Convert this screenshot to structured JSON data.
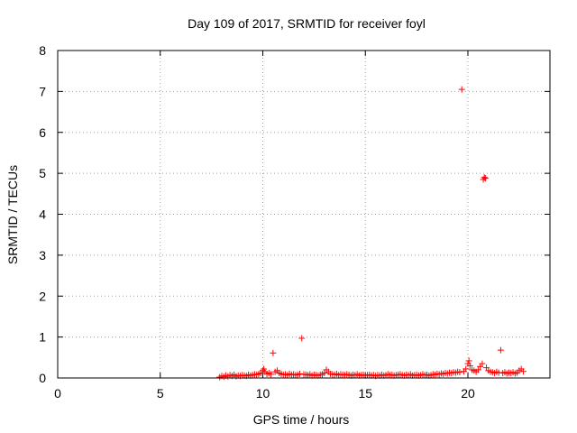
{
  "chart_data": {
    "type": "scatter",
    "title": "Day 109 of 2017, SRMTID for receiver foyl",
    "xlabel": "GPS time / hours",
    "ylabel": "SRMTID / TECUs",
    "xlim": [
      0,
      24
    ],
    "ylim": [
      0,
      8
    ],
    "xticks": [
      0,
      5,
      10,
      15,
      20
    ],
    "yticks": [
      0,
      1,
      2,
      3,
      4,
      5,
      6,
      7,
      8
    ],
    "grid": true,
    "marker": "+",
    "color": "#ff0000",
    "series": [
      {
        "name": "SRMTID",
        "points": [
          [
            7.9,
            0.02
          ],
          [
            8.0,
            0.05
          ],
          [
            8.1,
            0.03
          ],
          [
            8.2,
            0.06
          ],
          [
            8.3,
            0.04
          ],
          [
            8.4,
            0.07
          ],
          [
            8.5,
            0.05
          ],
          [
            8.6,
            0.08
          ],
          [
            8.7,
            0.04
          ],
          [
            8.8,
            0.06
          ],
          [
            8.9,
            0.05
          ],
          [
            9.0,
            0.07
          ],
          [
            9.1,
            0.06
          ],
          [
            9.2,
            0.05
          ],
          [
            9.3,
            0.08
          ],
          [
            9.4,
            0.06
          ],
          [
            9.5,
            0.07
          ],
          [
            9.6,
            0.09
          ],
          [
            9.7,
            0.08
          ],
          [
            9.8,
            0.1
          ],
          [
            9.9,
            0.12
          ],
          [
            10.0,
            0.18
          ],
          [
            10.05,
            0.22
          ],
          [
            10.1,
            0.15
          ],
          [
            10.2,
            0.1
          ],
          [
            10.3,
            0.12
          ],
          [
            10.4,
            0.09
          ],
          [
            10.5,
            0.61
          ],
          [
            10.6,
            0.15
          ],
          [
            10.7,
            0.18
          ],
          [
            10.8,
            0.12
          ],
          [
            10.9,
            0.1
          ],
          [
            11.0,
            0.08
          ],
          [
            11.1,
            0.09
          ],
          [
            11.2,
            0.07
          ],
          [
            11.3,
            0.1
          ],
          [
            11.4,
            0.08
          ],
          [
            11.5,
            0.09
          ],
          [
            11.6,
            0.07
          ],
          [
            11.7,
            0.08
          ],
          [
            11.8,
            0.1
          ],
          [
            11.9,
            0.97
          ],
          [
            12.0,
            0.09
          ],
          [
            12.1,
            0.08
          ],
          [
            12.2,
            0.07
          ],
          [
            12.3,
            0.09
          ],
          [
            12.4,
            0.06
          ],
          [
            12.5,
            0.08
          ],
          [
            12.6,
            0.07
          ],
          [
            12.7,
            0.06
          ],
          [
            12.8,
            0.08
          ],
          [
            12.9,
            0.09
          ],
          [
            13.0,
            0.12
          ],
          [
            13.1,
            0.2
          ],
          [
            13.2,
            0.15
          ],
          [
            13.3,
            0.1
          ],
          [
            13.4,
            0.09
          ],
          [
            13.5,
            0.08
          ],
          [
            13.6,
            0.1
          ],
          [
            13.7,
            0.07
          ],
          [
            13.8,
            0.09
          ],
          [
            13.9,
            0.08
          ],
          [
            14.0,
            0.07
          ],
          [
            14.1,
            0.09
          ],
          [
            14.2,
            0.08
          ],
          [
            14.3,
            0.06
          ],
          [
            14.4,
            0.08
          ],
          [
            14.5,
            0.07
          ],
          [
            14.6,
            0.09
          ],
          [
            14.7,
            0.06
          ],
          [
            14.8,
            0.07
          ],
          [
            14.9,
            0.08
          ],
          [
            15.0,
            0.06
          ],
          [
            15.1,
            0.07
          ],
          [
            15.2,
            0.08
          ],
          [
            15.3,
            0.06
          ],
          [
            15.4,
            0.07
          ],
          [
            15.5,
            0.05
          ],
          [
            15.6,
            0.07
          ],
          [
            15.7,
            0.06
          ],
          [
            15.8,
            0.08
          ],
          [
            15.9,
            0.06
          ],
          [
            16.0,
            0.07
          ],
          [
            16.1,
            0.09
          ],
          [
            16.2,
            0.07
          ],
          [
            16.3,
            0.08
          ],
          [
            16.4,
            0.06
          ],
          [
            16.5,
            0.07
          ],
          [
            16.6,
            0.08
          ],
          [
            16.7,
            0.09
          ],
          [
            16.8,
            0.07
          ],
          [
            16.9,
            0.06
          ],
          [
            17.0,
            0.08
          ],
          [
            17.1,
            0.07
          ],
          [
            17.2,
            0.09
          ],
          [
            17.3,
            0.06
          ],
          [
            17.4,
            0.07
          ],
          [
            17.5,
            0.08
          ],
          [
            17.6,
            0.06
          ],
          [
            17.7,
            0.07
          ],
          [
            17.8,
            0.09
          ],
          [
            17.9,
            0.07
          ],
          [
            18.0,
            0.08
          ],
          [
            18.1,
            0.06
          ],
          [
            18.2,
            0.07
          ],
          [
            18.3,
            0.09
          ],
          [
            18.4,
            0.08
          ],
          [
            18.5,
            0.1
          ],
          [
            18.6,
            0.09
          ],
          [
            18.7,
            0.11
          ],
          [
            18.8,
            0.1
          ],
          [
            18.9,
            0.12
          ],
          [
            19.0,
            0.11
          ],
          [
            19.1,
            0.13
          ],
          [
            19.2,
            0.12
          ],
          [
            19.3,
            0.14
          ],
          [
            19.4,
            0.13
          ],
          [
            19.5,
            0.15
          ],
          [
            19.6,
            0.14
          ],
          [
            19.7,
            7.05
          ],
          [
            19.8,
            0.16
          ],
          [
            19.9,
            0.22
          ],
          [
            20.0,
            0.35
          ],
          [
            20.05,
            0.42
          ],
          [
            20.1,
            0.3
          ],
          [
            20.2,
            0.2
          ],
          [
            20.3,
            0.18
          ],
          [
            20.4,
            0.15
          ],
          [
            20.5,
            0.2
          ],
          [
            20.6,
            0.28
          ],
          [
            20.7,
            0.35
          ],
          [
            20.75,
            4.85
          ],
          [
            20.8,
            4.9
          ],
          [
            20.85,
            4.88
          ],
          [
            20.9,
            0.25
          ],
          [
            21.0,
            0.18
          ],
          [
            21.1,
            0.15
          ],
          [
            21.2,
            0.14
          ],
          [
            21.3,
            0.12
          ],
          [
            21.4,
            0.15
          ],
          [
            21.5,
            0.13
          ],
          [
            21.6,
            0.68
          ],
          [
            21.7,
            0.12
          ],
          [
            21.8,
            0.14
          ],
          [
            21.9,
            0.11
          ],
          [
            22.0,
            0.13
          ],
          [
            22.1,
            0.12
          ],
          [
            22.2,
            0.14
          ],
          [
            22.3,
            0.11
          ],
          [
            22.4,
            0.13
          ],
          [
            22.5,
            0.18
          ],
          [
            22.6,
            0.22
          ],
          [
            22.7,
            0.16
          ]
        ]
      }
    ]
  }
}
